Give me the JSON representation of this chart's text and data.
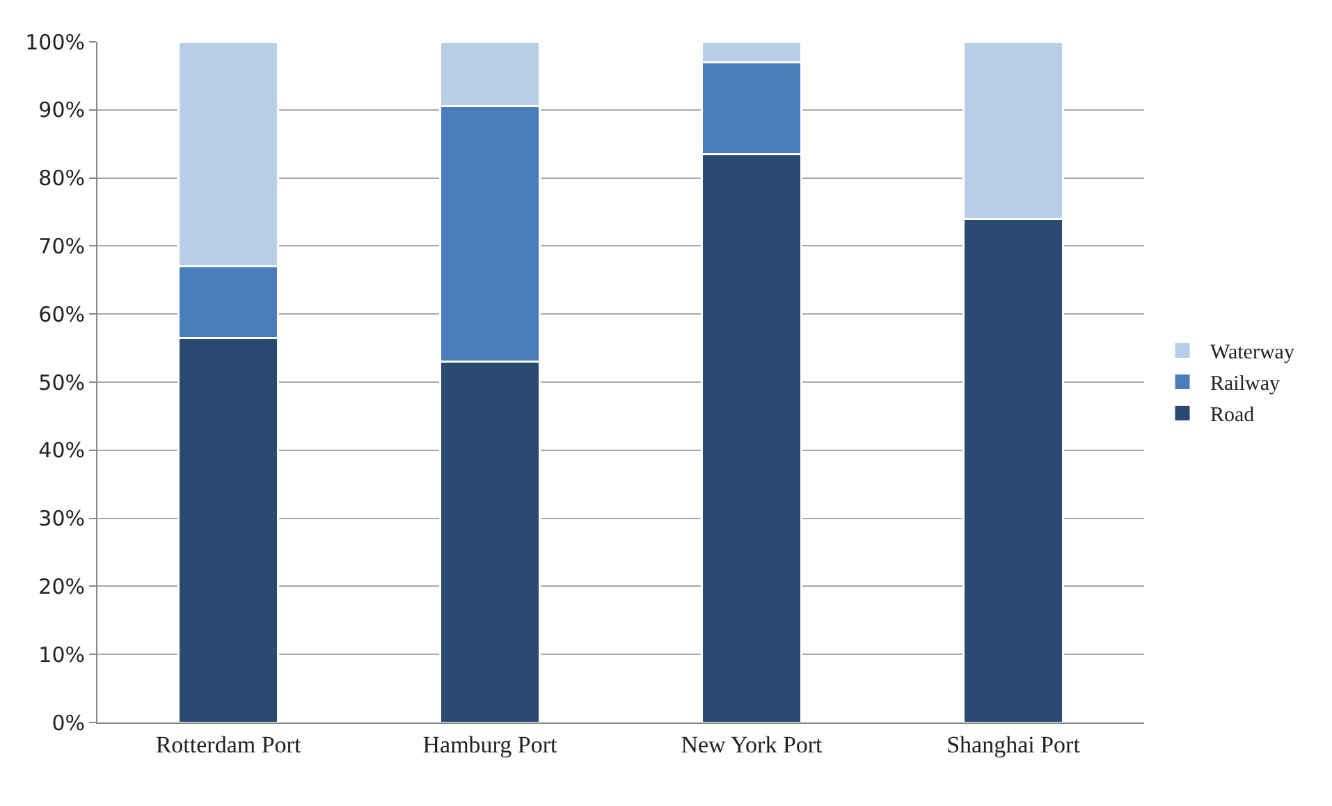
{
  "chart_data": {
    "type": "bar",
    "stacked": true,
    "categories": [
      "Rotterdam Port",
      "Hamburg Port",
      "New York Port",
      "Shanghai Port"
    ],
    "series": [
      {
        "name": "Road",
        "color": "#2a4a72",
        "values": [
          56.5,
          53,
          83.5,
          74
        ]
      },
      {
        "name": "Railway",
        "color": "#4a7ebb",
        "values": [
          10.5,
          37.5,
          13.5,
          0
        ]
      },
      {
        "name": "Waterway",
        "color": "#b7cde8",
        "values": [
          33,
          9.5,
          3,
          26
        ]
      }
    ],
    "ylim": [
      0,
      100
    ],
    "yticks": [
      {
        "value": 0,
        "label": "0%"
      },
      {
        "value": 10,
        "label": "10%"
      },
      {
        "value": 20,
        "label": "20%"
      },
      {
        "value": 30,
        "label": "30%"
      },
      {
        "value": 40,
        "label": "40%"
      },
      {
        "value": 50,
        "label": "50%"
      },
      {
        "value": 60,
        "label": "60%"
      },
      {
        "value": 70,
        "label": "70%"
      },
      {
        "value": 80,
        "label": "80%"
      },
      {
        "value": 90,
        "label": "90%"
      },
      {
        "value": 100,
        "label": "100%"
      }
    ],
    "grid": "y",
    "legend": "right"
  }
}
